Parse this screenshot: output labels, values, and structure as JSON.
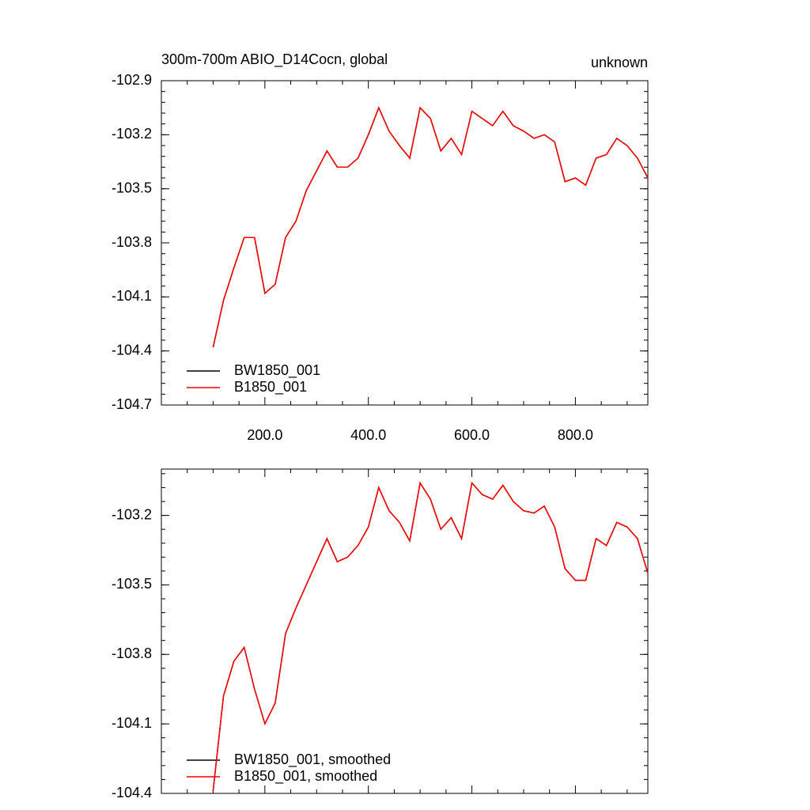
{
  "chart_data": [
    {
      "type": "line",
      "title": "300m-700m ABIO_D14Cocn, global",
      "right_title": "unknown",
      "x": [
        100,
        120,
        140,
        160,
        180,
        200,
        220,
        240,
        260,
        280,
        300,
        320,
        340,
        360,
        380,
        400,
        420,
        440,
        460,
        480,
        500,
        520,
        540,
        560,
        580,
        600,
        620,
        640,
        660,
        680,
        700,
        720,
        740,
        760,
        780,
        800,
        820,
        840,
        860,
        880,
        900,
        920,
        940
      ],
      "series": [
        {
          "name": "BW1850_001",
          "color": "#000000",
          "values": [
            -104.38,
            -104.12,
            -103.94,
            -103.77,
            -103.77,
            -104.08,
            -104.03,
            -103.77,
            -103.68,
            -103.51,
            -103.4,
            -103.29,
            -103.38,
            -103.38,
            -103.33,
            -103.2,
            -103.05,
            -103.18,
            -103.26,
            -103.33,
            -103.05,
            -103.11,
            -103.29,
            -103.22,
            -103.31,
            -103.07,
            -103.11,
            -103.15,
            -103.07,
            -103.15,
            -103.18,
            -103.22,
            -103.2,
            -103.24,
            -103.46,
            -103.44,
            -103.48,
            -103.33,
            -103.31,
            -103.22,
            -103.26,
            -103.33,
            -103.44
          ]
        },
        {
          "name": "B1850_001",
          "color": "#ff0000",
          "values": [
            -104.38,
            -104.12,
            -103.94,
            -103.77,
            -103.77,
            -104.08,
            -104.03,
            -103.77,
            -103.68,
            -103.51,
            -103.4,
            -103.29,
            -103.38,
            -103.38,
            -103.33,
            -103.2,
            -103.05,
            -103.18,
            -103.26,
            -103.33,
            -103.05,
            -103.11,
            -103.29,
            -103.22,
            -103.31,
            -103.07,
            -103.11,
            -103.15,
            -103.07,
            -103.15,
            -103.18,
            -103.22,
            -103.2,
            -103.24,
            -103.46,
            -103.44,
            -103.48,
            -103.33,
            -103.31,
            -103.22,
            -103.26,
            -103.33,
            -103.44
          ]
        }
      ],
      "xlim": [
        0,
        940
      ],
      "xticks": [
        {
          "value": 200,
          "label": "200.0"
        },
        {
          "value": 400,
          "label": "400.0"
        },
        {
          "value": 600,
          "label": "600.0"
        },
        {
          "value": 800,
          "label": "800.0"
        }
      ],
      "ylim": [
        -104.7,
        -102.9
      ],
      "yticks": [
        -102.9,
        -103.2,
        -103.5,
        -103.8,
        -104.1,
        -104.4,
        -104.7
      ]
    },
    {
      "type": "line",
      "x": [
        100,
        120,
        140,
        160,
        180,
        200,
        220,
        240,
        260,
        280,
        300,
        320,
        340,
        360,
        380,
        400,
        420,
        440,
        460,
        480,
        500,
        520,
        540,
        560,
        580,
        600,
        620,
        640,
        660,
        680,
        700,
        720,
        740,
        760,
        780,
        800,
        820,
        840,
        860,
        880,
        900,
        920,
        940
      ],
      "series": [
        {
          "name": "BW1850_001, smoothed",
          "color": "#000000",
          "values": [
            -104.39,
            -103.98,
            -103.83,
            -103.77,
            -103.95,
            -104.1,
            -104.01,
            -103.71,
            -103.6,
            -103.5,
            -103.4,
            -103.3,
            -103.4,
            -103.38,
            -103.33,
            -103.25,
            -103.08,
            -103.18,
            -103.23,
            -103.31,
            -103.06,
            -103.13,
            -103.26,
            -103.21,
            -103.3,
            -103.06,
            -103.11,
            -103.13,
            -103.07,
            -103.14,
            -103.18,
            -103.19,
            -103.16,
            -103.25,
            -103.43,
            -103.48,
            -103.48,
            -103.3,
            -103.33,
            -103.23,
            -103.25,
            -103.3,
            -103.45
          ]
        },
        {
          "name": "B1850_001, smoothed",
          "color": "#ff0000",
          "values": [
            -104.39,
            -103.98,
            -103.83,
            -103.77,
            -103.95,
            -104.1,
            -104.01,
            -103.71,
            -103.6,
            -103.5,
            -103.4,
            -103.3,
            -103.4,
            -103.38,
            -103.33,
            -103.25,
            -103.08,
            -103.18,
            -103.23,
            -103.31,
            -103.06,
            -103.13,
            -103.26,
            -103.21,
            -103.3,
            -103.06,
            -103.11,
            -103.13,
            -103.07,
            -103.14,
            -103.18,
            -103.19,
            -103.16,
            -103.25,
            -103.43,
            -103.48,
            -103.48,
            -103.3,
            -103.33,
            -103.23,
            -103.25,
            -103.3,
            -103.45
          ]
        }
      ],
      "xlim": [
        0,
        940
      ],
      "ylim": [
        -104.4,
        -103.0
      ],
      "yticks": [
        -103.2,
        -103.5,
        -103.8,
        -104.1,
        -104.4
      ]
    }
  ]
}
